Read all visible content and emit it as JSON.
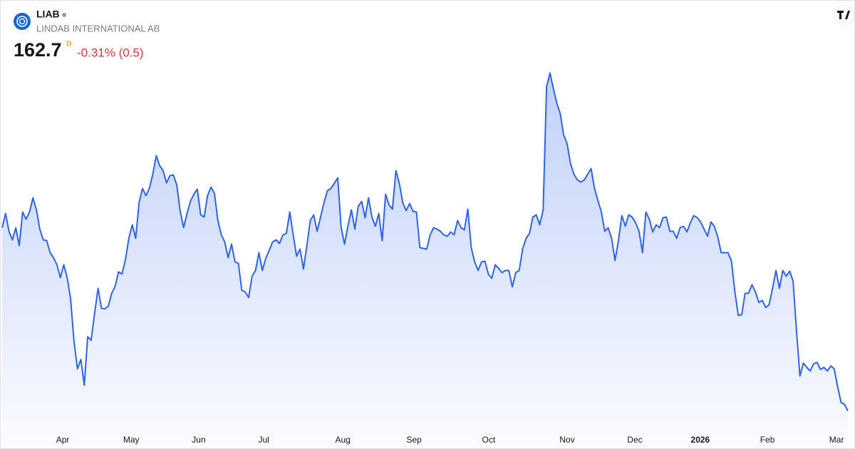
{
  "header": {
    "symbol": "LIAB",
    "name": "LINDAB INTERNATIONAL AB",
    "price": 162.7,
    "price_flag": "D",
    "change": "-0.31% (0.5)"
  },
  "chart_data": {
    "type": "area",
    "color": "#2f63e8",
    "grid": false,
    "ylim": [
      152,
      266
    ],
    "xticks": [
      {
        "value": 17.7,
        "label": "Apr"
      },
      {
        "value": 37.7,
        "label": "May"
      },
      {
        "value": 57.4,
        "label": "Jun"
      },
      {
        "value": 76.4,
        "label": "Jul"
      },
      {
        "value": 99.5,
        "label": "Aug"
      },
      {
        "value": 120.3,
        "label": "Sep"
      },
      {
        "value": 142.1,
        "label": "Oct"
      },
      {
        "value": 165.0,
        "label": "Nov"
      },
      {
        "value": 184.8,
        "label": "Dec"
      },
      {
        "value": 203.9,
        "label": "2026"
      },
      {
        "value": 223.5,
        "label": "Feb"
      },
      {
        "value": 243.7,
        "label": "Mar"
      }
    ],
    "series": [
      {
        "values": [
          214.1,
          218.1,
          213.1,
          210.7,
          214.1,
          209.1,
          218.5,
          216.5,
          218.5,
          222.5,
          219.1,
          213.7,
          210.7,
          210.5,
          207.1,
          205.7,
          203.7,
          200.1,
          203.7,
          200.1,
          194.1,
          182.1,
          174.5,
          177.1,
          169.9,
          183.5,
          182.5,
          190.1,
          197.1,
          191.5,
          191.3,
          192.1,
          195.7,
          197.7,
          201.7,
          201.1,
          205.1,
          211.1,
          214.9,
          211.1,
          221.1,
          225.1,
          223.1,
          225.1,
          229.1,
          234.3,
          231.5,
          230.1,
          226.7,
          228.7,
          228.9,
          226.1,
          218.7,
          214.1,
          218.1,
          221.5,
          223.5,
          224.9,
          217.7,
          217.1,
          223.1,
          225.5,
          223.7,
          216.1,
          212.1,
          210.1,
          205.7,
          209.5,
          204.5,
          204.1,
          196.5,
          196.1,
          194.5,
          200.5,
          202.1,
          207.1,
          202.1,
          205.5,
          207.7,
          210.1,
          210.7,
          209.7,
          212.1,
          212.5,
          218.5,
          212.1,
          206.1,
          208.1,
          202.5,
          209.1,
          216.1,
          217.7,
          213.1,
          217.1,
          221.1,
          224.5,
          225.1,
          226.5,
          228.1,
          214.1,
          209.5,
          214.7,
          219.1,
          213.7,
          220.1,
          221.5,
          216.9,
          222.5,
          217.1,
          214.5,
          218.1,
          210.5,
          223.5,
          220.5,
          219.3,
          230.1,
          226.5,
          221.1,
          218.9,
          220.9,
          218.7,
          218.5,
          208.5,
          208.3,
          208.1,
          212.1,
          214.1,
          213.7,
          213.1,
          212.1,
          211.7,
          212.9,
          212.1,
          216.1,
          214.1,
          213.5,
          219.3,
          208.5,
          204.5,
          202.1,
          204.5,
          204.7,
          201.1,
          199.9,
          203.7,
          202.7,
          201.5,
          202.1,
          202.1,
          197.5,
          201.5,
          202.1,
          208.1,
          211.1,
          212.5,
          217.1,
          217.7,
          214.9,
          219.1,
          253.7,
          257.5,
          253.1,
          249.1,
          246.1,
          240.1,
          237.7,
          232.1,
          229.1,
          227.5,
          226.9,
          227.5,
          229.1,
          230.7,
          225.1,
          221.7,
          218.5,
          213.1,
          214.1,
          211.1,
          204.9,
          210.5,
          217.5,
          214.5,
          217.7,
          217.1,
          215.5,
          213.1,
          207.1,
          218.5,
          216.5,
          212.9,
          214.9,
          214.1,
          216.9,
          217.1,
          213.1,
          213.1,
          211.1,
          214.1,
          214.5,
          212.9,
          215.5,
          217.5,
          216.9,
          215.7,
          213.7,
          211.7,
          215.7,
          214.5,
          211.5,
          207.1,
          207.1,
          207.1,
          204.7,
          196.1,
          189.5,
          189.7,
          195.7,
          195.7,
          198.1,
          196.1,
          193.1,
          193.7,
          191.7,
          192.5,
          197.1,
          202.1,
          197.1,
          202.1,
          200.5,
          201.9,
          199.1,
          185.1,
          172.5,
          176.1,
          174.9,
          173.9,
          175.9,
          176.3,
          174.3,
          174.9,
          173.9,
          175.3,
          174.5,
          169.5,
          165.1,
          164.5,
          162.7
        ]
      }
    ]
  }
}
